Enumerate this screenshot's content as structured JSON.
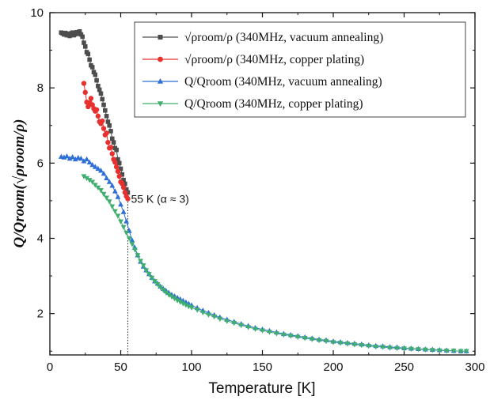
{
  "chart_data": {
    "type": "scatter",
    "xlabel": "Temperature [K]",
    "ylabel": "Q/Qroom(√ρroom/ρ)",
    "xlim": [
      0,
      300
    ],
    "ylim": [
      0.9,
      10
    ],
    "xticks": [
      0,
      50,
      100,
      150,
      200,
      250,
      300
    ],
    "yticks": [
      2,
      4,
      6,
      8,
      10
    ],
    "grid": false,
    "legend_position": "top-right",
    "annotation": {
      "text": "55 K (α ≈ 3)",
      "x": 55,
      "y": 5.05
    },
    "series": [
      {
        "name": "√ρroom/ρ (340MHz, vacuum annealing)",
        "color": "#4d4d4d",
        "marker": "square",
        "x": [
          8,
          9,
          10,
          11,
          12,
          13,
          14,
          15,
          16,
          17,
          18,
          19,
          20,
          21,
          22,
          23,
          24,
          25,
          26,
          27,
          28,
          29,
          30,
          31,
          32,
          33,
          34,
          35,
          36,
          37,
          38,
          39,
          40,
          41,
          42,
          43,
          44,
          45,
          46,
          47,
          48,
          49,
          50,
          51,
          52,
          53,
          54,
          55
        ],
        "y": [
          9.47,
          9.45,
          9.42,
          9.46,
          9.4,
          9.44,
          9.38,
          9.45,
          9.47,
          9.4,
          9.43,
          9.48,
          9.44,
          9.5,
          9.42,
          9.36,
          9.2,
          9.1,
          8.95,
          8.9,
          8.75,
          8.6,
          8.55,
          8.42,
          8.35,
          8.2,
          8.05,
          7.95,
          7.85,
          7.7,
          7.55,
          7.4,
          7.25,
          7.1,
          7.0,
          6.85,
          6.65,
          6.55,
          6.4,
          6.35,
          6.1,
          6.0,
          5.85,
          5.7,
          5.55,
          5.45,
          5.3,
          5.22
        ]
      },
      {
        "name": "√ρroom/ρ (340MHz, copper plating)",
        "color": "#e8302e",
        "marker": "circle",
        "x": [
          24,
          25,
          26,
          27,
          28,
          29,
          30,
          31,
          32,
          33,
          34,
          35,
          36,
          37,
          38,
          39,
          40,
          41,
          42,
          43,
          44,
          45,
          46,
          47,
          48,
          49,
          50,
          51,
          52,
          53,
          54,
          55
        ],
        "y": [
          8.12,
          7.88,
          7.62,
          7.5,
          7.6,
          7.72,
          7.55,
          7.45,
          7.38,
          7.42,
          7.25,
          7.1,
          7.05,
          7.12,
          6.92,
          6.75,
          6.8,
          6.55,
          6.4,
          6.42,
          6.25,
          6.1,
          6.02,
          5.9,
          5.78,
          5.65,
          5.5,
          5.45,
          5.35,
          5.22,
          5.12,
          5.05
        ]
      },
      {
        "name": "Q/Qroom (340MHz, vacuum annealing)",
        "color": "#2f6fd8",
        "marker": "triangle-up",
        "x": [
          8,
          10,
          12,
          14,
          16,
          18,
          20,
          22,
          24,
          26,
          28,
          30,
          32,
          34,
          36,
          38,
          40,
          42,
          44,
          46,
          48,
          50,
          52,
          54,
          56,
          58,
          60,
          62,
          64,
          66,
          68,
          70,
          72,
          74,
          76,
          78,
          80,
          82,
          84,
          86,
          88,
          90,
          92,
          94,
          96,
          98,
          100,
          104,
          108,
          112,
          116,
          120,
          125,
          130,
          135,
          140,
          145,
          150,
          155,
          160,
          165,
          170,
          175,
          180,
          185,
          190,
          195,
          200,
          205,
          210,
          215,
          220,
          225,
          230,
          235,
          240,
          245,
          250,
          255,
          260,
          265,
          270,
          275,
          280,
          285,
          290,
          294
        ],
        "y": [
          6.17,
          6.15,
          6.18,
          6.12,
          6.16,
          6.1,
          6.14,
          6.12,
          6.05,
          6.1,
          6.02,
          5.95,
          5.9,
          5.85,
          5.8,
          5.72,
          5.6,
          5.5,
          5.4,
          5.25,
          5.1,
          4.9,
          4.7,
          4.45,
          4.2,
          3.95,
          3.75,
          3.55,
          3.38,
          3.25,
          3.15,
          3.05,
          2.95,
          2.86,
          2.8,
          2.72,
          2.66,
          2.6,
          2.55,
          2.5,
          2.46,
          2.42,
          2.38,
          2.34,
          2.3,
          2.26,
          2.22,
          2.15,
          2.08,
          2.02,
          1.96,
          1.9,
          1.84,
          1.78,
          1.72,
          1.67,
          1.62,
          1.58,
          1.54,
          1.5,
          1.46,
          1.43,
          1.4,
          1.37,
          1.34,
          1.31,
          1.29,
          1.26,
          1.24,
          1.22,
          1.2,
          1.18,
          1.16,
          1.14,
          1.13,
          1.11,
          1.1,
          1.08,
          1.07,
          1.06,
          1.05,
          1.04,
          1.03,
          1.02,
          1.01,
          1.0,
          1.0
        ]
      },
      {
        "name": "Q/Qroom (340MHz, copper plating)",
        "color": "#3fae6f",
        "marker": "triangle-down",
        "x": [
          24,
          26,
          28,
          30,
          32,
          34,
          36,
          38,
          40,
          42,
          44,
          46,
          48,
          50,
          52,
          54,
          56,
          58,
          60,
          62,
          64,
          66,
          68,
          70,
          72,
          74,
          76,
          78,
          80,
          82,
          84,
          86,
          88,
          90,
          92,
          94,
          96,
          98,
          100,
          104,
          108,
          112,
          116,
          120,
          125,
          130,
          135,
          140,
          145,
          150,
          155,
          160,
          165,
          170,
          175,
          180,
          185,
          190,
          195,
          200,
          205,
          210,
          215,
          220,
          225,
          230,
          235,
          240,
          245,
          250,
          255,
          260,
          265,
          270,
          275,
          280,
          285,
          290,
          294
        ],
        "y": [
          5.65,
          5.6,
          5.55,
          5.5,
          5.42,
          5.35,
          5.28,
          5.18,
          5.08,
          4.98,
          4.85,
          4.72,
          4.6,
          4.45,
          4.3,
          4.15,
          4.0,
          3.85,
          3.7,
          3.55,
          3.4,
          3.28,
          3.15,
          3.05,
          2.95,
          2.86,
          2.78,
          2.7,
          2.63,
          2.56,
          2.5,
          2.45,
          2.4,
          2.35,
          2.31,
          2.27,
          2.23,
          2.19,
          2.16,
          2.1,
          2.03,
          1.97,
          1.92,
          1.86,
          1.8,
          1.75,
          1.69,
          1.64,
          1.59,
          1.55,
          1.51,
          1.47,
          1.44,
          1.41,
          1.38,
          1.35,
          1.32,
          1.29,
          1.27,
          1.24,
          1.22,
          1.2,
          1.18,
          1.16,
          1.14,
          1.12,
          1.11,
          1.09,
          1.08,
          1.07,
          1.06,
          1.05,
          1.04,
          1.03,
          1.02,
          1.01,
          1.01,
          1.0,
          1.0
        ]
      }
    ]
  }
}
